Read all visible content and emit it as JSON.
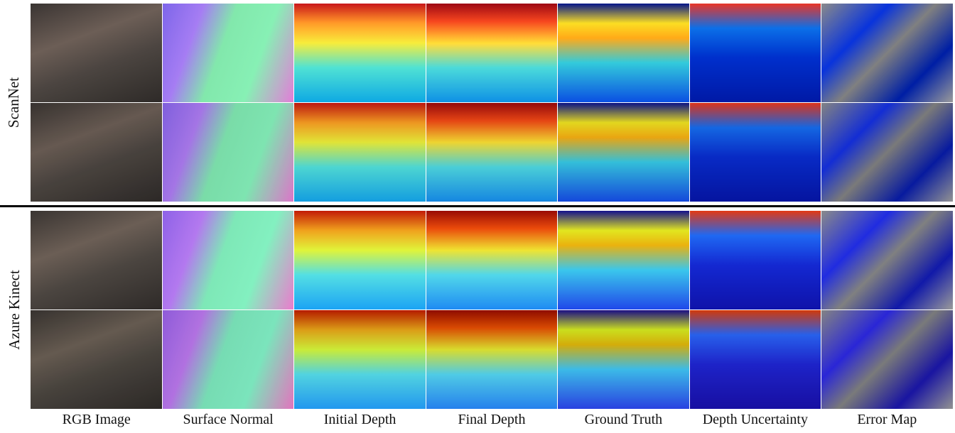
{
  "row_groups": [
    {
      "label": "ScanNet"
    },
    {
      "label": "Azure Kinect"
    }
  ],
  "columns": [
    "RGB Image",
    "Surface Normal",
    "Initial Depth",
    "Final Depth",
    "Ground Truth",
    "Depth Uncertainty",
    "Error Map"
  ]
}
